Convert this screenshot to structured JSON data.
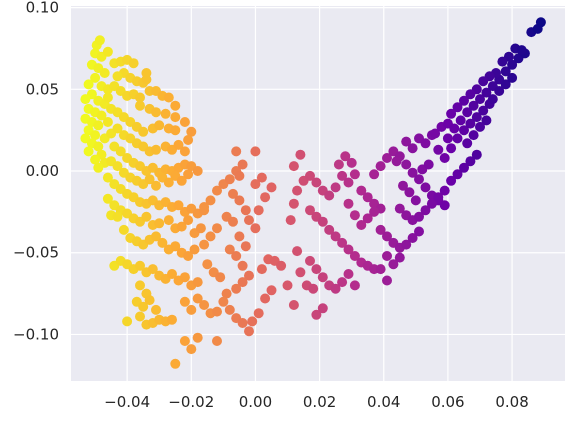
{
  "chart_data": {
    "type": "scatter",
    "title": "",
    "xlabel": "",
    "ylabel": "",
    "xlim": [
      -0.0575,
      0.0965
    ],
    "ylim": [
      -0.1285,
      0.101
    ],
    "x_ticks": [
      -0.04,
      -0.02,
      0.0,
      0.02,
      0.04,
      0.06,
      0.08
    ],
    "x_tick_labels": [
      "−0.04",
      "−0.02",
      "0.00",
      "0.02",
      "0.04",
      "0.06",
      "0.08"
    ],
    "y_ticks": [
      -0.1,
      -0.05,
      0.0,
      0.05,
      0.1
    ],
    "y_tick_labels": [
      "−0.10",
      "−0.05",
      "0.00",
      "0.05",
      "0.10"
    ],
    "grid": true,
    "background": "#eaeaf2",
    "grid_color": "#ffffff",
    "colormap": "plasma (color follows x: yellow at left, dark blue-purple at right)",
    "colormap_stops": [
      "#0d0887",
      "#6a00a8",
      "#b12a90",
      "#e16462",
      "#fca636",
      "#f0f921"
    ],
    "color_range": [
      0.089,
      -0.052
    ],
    "points": [
      [
        -0.0495,
        0.077
      ],
      [
        -0.0485,
        0.08
      ],
      [
        -0.05,
        0.072
      ],
      [
        -0.051,
        0.065
      ],
      [
        -0.049,
        0.063
      ],
      [
        -0.047,
        0.06
      ],
      [
        -0.05,
        0.057
      ],
      [
        -0.052,
        0.053
      ],
      [
        -0.048,
        0.052
      ],
      [
        -0.046,
        0.05
      ],
      [
        -0.051,
        0.047
      ],
      [
        -0.053,
        0.044
      ],
      [
        -0.049,
        0.043
      ],
      [
        -0.047,
        0.041
      ],
      [
        -0.052,
        0.038
      ],
      [
        -0.05,
        0.036
      ],
      [
        -0.048,
        0.034
      ],
      [
        -0.053,
        0.032
      ],
      [
        -0.051,
        0.03
      ],
      [
        -0.049,
        0.028
      ],
      [
        -0.052,
        0.025
      ],
      [
        -0.05,
        0.022
      ],
      [
        -0.047,
        0.02
      ],
      [
        -0.053,
        0.02
      ],
      [
        -0.051,
        0.017
      ],
      [
        -0.049,
        0.015
      ],
      [
        -0.052,
        0.012
      ],
      [
        -0.048,
        0.01
      ],
      [
        -0.05,
        0.007
      ],
      [
        -0.047,
        0.005
      ],
      [
        -0.049,
        0.002
      ],
      [
        -0.046,
        0.045
      ],
      [
        -0.045,
        0.038
      ],
      [
        -0.046,
        0.03
      ],
      [
        -0.045,
        0.023
      ],
      [
        -0.048,
        0.07
      ],
      [
        -0.046,
        0.073
      ],
      [
        -0.044,
        0.066
      ],
      [
        -0.042,
        0.067
      ],
      [
        -0.04,
        0.068
      ],
      [
        -0.038,
        0.066
      ],
      [
        -0.041,
        0.06
      ],
      [
        -0.043,
        0.058
      ],
      [
        -0.039,
        0.057
      ],
      [
        -0.037,
        0.055
      ],
      [
        -0.035,
        0.054
      ],
      [
        -0.034,
        0.056
      ],
      [
        -0.044,
        0.052
      ],
      [
        -0.042,
        0.049
      ],
      [
        -0.04,
        0.046
      ],
      [
        -0.038,
        0.047
      ],
      [
        -0.036,
        0.045
      ],
      [
        -0.033,
        0.049
      ],
      [
        -0.034,
        0.06
      ],
      [
        -0.031,
        0.049
      ],
      [
        -0.029,
        0.046
      ],
      [
        -0.027,
        0.045
      ],
      [
        -0.025,
        0.04
      ],
      [
        -0.036,
        0.04
      ],
      [
        -0.033,
        0.038
      ],
      [
        -0.031,
        0.036
      ],
      [
        -0.028,
        0.035
      ],
      [
        -0.025,
        0.033
      ],
      [
        -0.022,
        0.03
      ],
      [
        -0.02,
        0.024
      ],
      [
        -0.043,
        0.036
      ],
      [
        -0.041,
        0.033
      ],
      [
        -0.039,
        0.03
      ],
      [
        -0.037,
        0.027
      ],
      [
        -0.035,
        0.024
      ],
      [
        -0.032,
        0.026
      ],
      [
        -0.03,
        0.028
      ],
      [
        -0.027,
        0.026
      ],
      [
        -0.025,
        0.025
      ],
      [
        -0.043,
        0.026
      ],
      [
        -0.041,
        0.022
      ],
      [
        -0.039,
        0.02
      ],
      [
        -0.037,
        0.017
      ],
      [
        -0.035,
        0.015
      ],
      [
        -0.033,
        0.012
      ],
      [
        -0.031,
        0.013
      ],
      [
        -0.028,
        0.015
      ],
      [
        -0.026,
        0.013
      ],
      [
        -0.024,
        0.016
      ],
      [
        -0.022,
        0.012
      ],
      [
        -0.021,
        0.019
      ],
      [
        -0.044,
        0.015
      ],
      [
        -0.042,
        0.012
      ],
      [
        -0.04,
        0.008
      ],
      [
        -0.038,
        0.005
      ],
      [
        -0.036,
        0.003
      ],
      [
        -0.034,
        0.0
      ],
      [
        -0.032,
        0.002
      ],
      [
        -0.03,
        -0.001
      ],
      [
        -0.028,
        0.001
      ],
      [
        -0.026,
        0.0
      ],
      [
        -0.024,
        0.002
      ],
      [
        -0.022,
        0.004
      ],
      [
        -0.02,
        0.003
      ],
      [
        -0.018,
        0.0
      ],
      [
        -0.045,
        0.006
      ],
      [
        -0.043,
        0.003
      ],
      [
        -0.041,
        -0.001
      ],
      [
        -0.039,
        -0.004
      ],
      [
        -0.037,
        -0.006
      ],
      [
        -0.035,
        -0.008
      ],
      [
        -0.033,
        -0.005
      ],
      [
        -0.031,
        -0.009
      ],
      [
        -0.029,
        -0.004
      ],
      [
        -0.027,
        -0.007
      ],
      [
        -0.025,
        -0.003
      ],
      [
        -0.023,
        -0.006
      ],
      [
        -0.021,
        -0.002
      ],
      [
        -0.046,
        -0.004
      ],
      [
        -0.044,
        -0.008
      ],
      [
        -0.042,
        -0.011
      ],
      [
        -0.04,
        -0.014
      ],
      [
        -0.038,
        -0.016
      ],
      [
        -0.036,
        -0.019
      ],
      [
        -0.034,
        -0.02
      ],
      [
        -0.032,
        -0.018
      ],
      [
        -0.03,
        -0.021
      ],
      [
        -0.028,
        -0.019
      ],
      [
        -0.026,
        -0.022
      ],
      [
        -0.024,
        -0.021
      ],
      [
        -0.022,
        -0.025
      ],
      [
        -0.02,
        -0.023
      ],
      [
        -0.018,
        -0.026
      ],
      [
        -0.016,
        -0.024
      ],
      [
        -0.046,
        -0.017
      ],
      [
        -0.044,
        -0.021
      ],
      [
        -0.042,
        -0.024
      ],
      [
        -0.045,
        -0.027
      ],
      [
        -0.043,
        -0.028
      ],
      [
        -0.04,
        -0.026
      ],
      [
        -0.038,
        -0.029
      ],
      [
        -0.036,
        -0.031
      ],
      [
        -0.034,
        -0.028
      ],
      [
        -0.032,
        -0.033
      ],
      [
        -0.03,
        -0.032
      ],
      [
        -0.027,
        -0.03
      ],
      [
        -0.025,
        -0.035
      ],
      [
        -0.023,
        -0.034
      ],
      [
        -0.021,
        -0.03
      ],
      [
        -0.019,
        -0.038
      ],
      [
        -0.017,
        -0.035
      ],
      [
        -0.041,
        -0.036
      ],
      [
        -0.039,
        -0.041
      ],
      [
        -0.037,
        -0.043
      ],
      [
        -0.035,
        -0.045
      ],
      [
        -0.033,
        -0.042
      ],
      [
        -0.031,
        -0.04
      ],
      [
        -0.029,
        -0.044
      ],
      [
        -0.027,
        -0.048
      ],
      [
        -0.025,
        -0.046
      ],
      [
        -0.023,
        -0.05
      ],
      [
        -0.021,
        -0.052
      ],
      [
        -0.019,
        -0.048
      ],
      [
        -0.044,
        -0.058
      ],
      [
        -0.042,
        -0.055
      ],
      [
        -0.04,
        -0.057
      ],
      [
        -0.038,
        -0.06
      ],
      [
        -0.036,
        -0.058
      ],
      [
        -0.034,
        -0.062
      ],
      [
        -0.032,
        -0.06
      ],
      [
        -0.03,
        -0.064
      ],
      [
        -0.028,
        -0.066
      ],
      [
        -0.026,
        -0.063
      ],
      [
        -0.024,
        -0.067
      ],
      [
        -0.022,
        -0.065
      ],
      [
        -0.02,
        -0.07
      ],
      [
        -0.018,
        -0.068
      ],
      [
        -0.036,
        -0.07
      ],
      [
        -0.034,
        -0.075
      ],
      [
        -0.037,
        -0.08
      ],
      [
        -0.035,
        -0.083
      ],
      [
        -0.033,
        -0.079
      ],
      [
        -0.031,
        -0.085
      ],
      [
        -0.04,
        -0.092
      ],
      [
        -0.036,
        -0.089
      ],
      [
        -0.034,
        -0.094
      ],
      [
        -0.032,
        -0.093
      ],
      [
        -0.03,
        -0.091
      ],
      [
        -0.028,
        -0.092
      ],
      [
        -0.026,
        -0.091
      ],
      [
        -0.022,
        -0.08
      ],
      [
        -0.02,
        -0.085
      ],
      [
        -0.018,
        -0.078
      ],
      [
        -0.016,
        -0.082
      ],
      [
        -0.014,
        -0.087
      ],
      [
        -0.012,
        -0.086
      ],
      [
        -0.022,
        -0.104
      ],
      [
        -0.02,
        -0.109
      ],
      [
        -0.018,
        -0.102
      ],
      [
        -0.025,
        -0.118
      ],
      [
        -0.012,
        -0.104
      ],
      [
        -0.015,
        -0.057
      ],
      [
        -0.013,
        -0.062
      ],
      [
        -0.011,
        -0.065
      ],
      [
        -0.016,
        -0.045
      ],
      [
        -0.014,
        -0.04
      ],
      [
        -0.012,
        -0.035
      ],
      [
        -0.016,
        -0.022
      ],
      [
        -0.014,
        -0.018
      ],
      [
        -0.012,
        -0.012
      ],
      [
        -0.01,
        -0.008
      ],
      [
        -0.008,
        -0.005
      ],
      [
        -0.006,
        0.0
      ],
      [
        -0.004,
        0.004
      ],
      [
        -0.006,
        0.012
      ],
      [
        -0.005,
        -0.003
      ],
      [
        -0.007,
        -0.014
      ],
      [
        -0.005,
        -0.018
      ],
      [
        -0.003,
        -0.024
      ],
      [
        -0.009,
        -0.028
      ],
      [
        -0.007,
        -0.031
      ],
      [
        -0.005,
        -0.04
      ],
      [
        -0.003,
        -0.046
      ],
      [
        -0.008,
        -0.048
      ],
      [
        -0.006,
        -0.052
      ],
      [
        -0.004,
        -0.058
      ],
      [
        -0.002,
        -0.064
      ],
      [
        -0.004,
        -0.068
      ],
      [
        -0.006,
        -0.072
      ],
      [
        -0.009,
        -0.075
      ],
      [
        -0.01,
        -0.08
      ],
      [
        -0.008,
        -0.085
      ],
      [
        -0.006,
        -0.09
      ],
      [
        -0.004,
        -0.093
      ],
      [
        -0.002,
        -0.098
      ],
      [
        -0.001,
        -0.092
      ],
      [
        0.001,
        -0.087
      ],
      [
        0.003,
        -0.078
      ],
      [
        0.005,
        -0.073
      ],
      [
        0.002,
        -0.06
      ],
      [
        0.004,
        -0.054
      ],
      [
        0.006,
        -0.055
      ],
      [
        0.008,
        -0.058
      ],
      [
        0.0,
        -0.035
      ],
      [
        -0.002,
        -0.03
      ],
      [
        0.001,
        -0.024
      ],
      [
        0.003,
        -0.016
      ],
      [
        0.005,
        -0.01
      ],
      [
        0.002,
        -0.004
      ],
      [
        0.0,
        0.012
      ],
      [
        0.0,
        -0.008
      ],
      [
        0.01,
        -0.07
      ],
      [
        0.012,
        -0.082
      ],
      [
        0.014,
        -0.062
      ],
      [
        0.013,
        -0.049
      ],
      [
        0.011,
        -0.03
      ],
      [
        0.012,
        -0.02
      ],
      [
        0.013,
        -0.012
      ],
      [
        0.015,
        -0.006
      ],
      [
        0.017,
        -0.003
      ],
      [
        0.019,
        -0.007
      ],
      [
        0.021,
        -0.012
      ],
      [
        0.023,
        -0.015
      ],
      [
        0.025,
        -0.01
      ],
      [
        0.027,
        -0.003
      ],
      [
        0.029,
        -0.007
      ],
      [
        0.031,
        -0.002
      ],
      [
        0.033,
        -0.012
      ],
      [
        0.035,
        -0.016
      ],
      [
        0.037,
        -0.02
      ],
      [
        0.039,
        -0.023
      ],
      [
        0.012,
        0.003
      ],
      [
        0.014,
        0.01
      ],
      [
        0.026,
        0.004
      ],
      [
        0.028,
        0.009
      ],
      [
        0.03,
        0.005
      ],
      [
        0.017,
        -0.024
      ],
      [
        0.019,
        -0.028
      ],
      [
        0.021,
        -0.031
      ],
      [
        0.023,
        -0.036
      ],
      [
        0.025,
        -0.04
      ],
      [
        0.027,
        -0.044
      ],
      [
        0.029,
        -0.048
      ],
      [
        0.031,
        -0.052
      ],
      [
        0.033,
        -0.056
      ],
      [
        0.035,
        -0.058
      ],
      [
        0.037,
        -0.06
      ],
      [
        0.017,
        -0.055
      ],
      [
        0.019,
        -0.06
      ],
      [
        0.021,
        -0.065
      ],
      [
        0.023,
        -0.07
      ],
      [
        0.025,
        -0.072
      ],
      [
        0.027,
        -0.068
      ],
      [
        0.029,
        -0.063
      ],
      [
        0.031,
        -0.07
      ],
      [
        0.016,
        -0.07
      ],
      [
        0.018,
        -0.072
      ],
      [
        0.019,
        -0.088
      ],
      [
        0.021,
        -0.084
      ],
      [
        0.029,
        -0.02
      ],
      [
        0.031,
        -0.027
      ],
      [
        0.033,
        -0.033
      ],
      [
        0.035,
        -0.029
      ],
      [
        0.037,
        -0.025
      ],
      [
        0.039,
        -0.036
      ],
      [
        0.041,
        -0.04
      ],
      [
        0.043,
        -0.044
      ],
      [
        0.045,
        -0.047
      ],
      [
        0.047,
        -0.045
      ],
      [
        0.049,
        -0.041
      ],
      [
        0.051,
        -0.037
      ],
      [
        0.041,
        -0.052
      ],
      [
        0.043,
        -0.057
      ],
      [
        0.045,
        -0.053
      ],
      [
        0.039,
        -0.06
      ],
      [
        0.041,
        -0.067
      ],
      [
        0.037,
        -0.002
      ],
      [
        0.039,
        0.003
      ],
      [
        0.041,
        0.008
      ],
      [
        0.043,
        0.012
      ],
      [
        0.045,
        0.009
      ],
      [
        0.047,
        0.004
      ],
      [
        0.049,
        -0.001
      ],
      [
        0.051,
        -0.005
      ],
      [
        0.053,
        -0.01
      ],
      [
        0.055,
        -0.015
      ],
      [
        0.057,
        -0.018
      ],
      [
        0.059,
        -0.021
      ],
      [
        0.045,
        -0.023
      ],
      [
        0.047,
        -0.027
      ],
      [
        0.049,
        -0.03
      ],
      [
        0.051,
        -0.028
      ],
      [
        0.053,
        -0.024
      ],
      [
        0.055,
        -0.02
      ],
      [
        0.057,
        -0.016
      ],
      [
        0.059,
        -0.012
      ],
      [
        0.061,
        -0.006
      ],
      [
        0.063,
        -0.002
      ],
      [
        0.065,
        0.002
      ],
      [
        0.067,
        0.006
      ],
      [
        0.069,
        0.01
      ],
      [
        0.047,
        0.018
      ],
      [
        0.049,
        0.014
      ],
      [
        0.051,
        0.02
      ],
      [
        0.053,
        0.017
      ],
      [
        0.055,
        0.022
      ],
      [
        0.057,
        0.013
      ],
      [
        0.059,
        0.008
      ],
      [
        0.061,
        0.014
      ],
      [
        0.063,
        0.02
      ],
      [
        0.065,
        0.025
      ],
      [
        0.067,
        0.029
      ],
      [
        0.069,
        0.033
      ],
      [
        0.071,
        0.037
      ],
      [
        0.073,
        0.041
      ],
      [
        0.044,
        0.006
      ],
      [
        0.046,
        -0.009
      ],
      [
        0.048,
        -0.013
      ],
      [
        0.05,
        -0.018
      ],
      [
        0.052,
        0.001
      ],
      [
        0.054,
        0.004
      ],
      [
        0.056,
        0.023
      ],
      [
        0.058,
        0.027
      ],
      [
        0.06,
        0.02
      ],
      [
        0.06,
        0.029
      ],
      [
        0.062,
        0.026
      ],
      [
        0.064,
        0.031
      ],
      [
        0.066,
        0.036
      ],
      [
        0.068,
        0.04
      ],
      [
        0.07,
        0.044
      ],
      [
        0.072,
        0.048
      ],
      [
        0.074,
        0.052
      ],
      [
        0.076,
        0.056
      ],
      [
        0.078,
        0.061
      ],
      [
        0.08,
        0.065
      ],
      [
        0.082,
        0.069
      ],
      [
        0.084,
        0.072
      ],
      [
        0.086,
        0.085
      ],
      [
        0.088,
        0.087
      ],
      [
        0.089,
        0.091
      ],
      [
        0.081,
        0.075
      ],
      [
        0.083,
        0.074
      ],
      [
        0.079,
        0.07
      ],
      [
        0.077,
        0.067
      ],
      [
        0.075,
        0.06
      ],
      [
        0.073,
        0.058
      ],
      [
        0.071,
        0.055
      ],
      [
        0.069,
        0.05
      ],
      [
        0.067,
        0.047
      ],
      [
        0.065,
        0.043
      ],
      [
        0.063,
        0.039
      ],
      [
        0.061,
        0.035
      ],
      [
        0.074,
        0.044
      ],
      [
        0.076,
        0.049
      ],
      [
        0.078,
        0.053
      ],
      [
        0.08,
        0.057
      ],
      [
        0.072,
        0.031
      ],
      [
        0.07,
        0.027
      ],
      [
        0.068,
        0.022
      ],
      [
        0.066,
        0.017
      ]
    ]
  }
}
